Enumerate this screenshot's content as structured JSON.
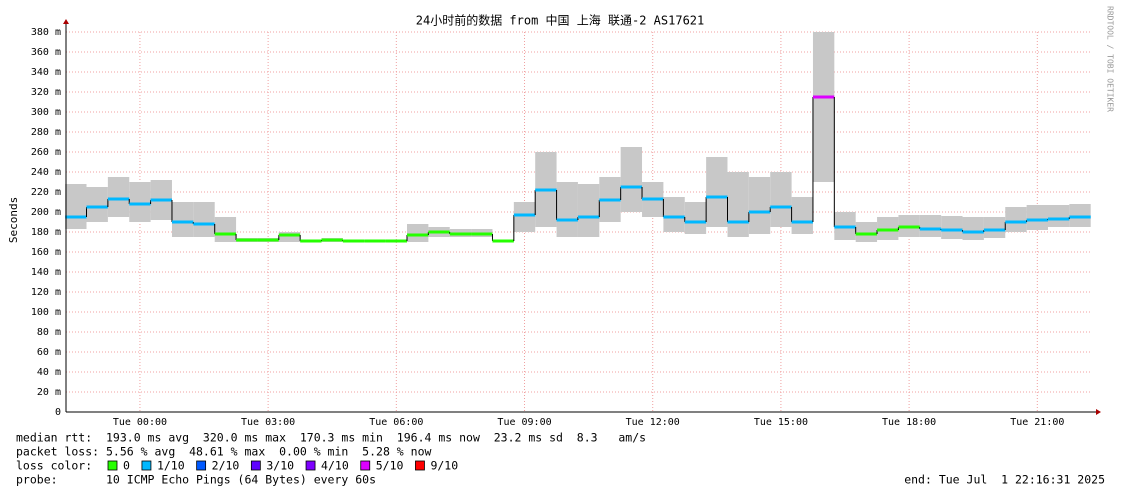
{
  "chart_data": {
    "type": "smoke",
    "title": "24小时前的数据 from 中国 上海 联通-2 AS17621",
    "y_label": "Seconds",
    "watermark": "RRDTOOL / TOBI OETIKER",
    "x": [
      -1.5,
      -1.0,
      -0.5,
      0,
      0.5,
      1.0,
      1.5,
      2.0,
      2.5,
      3.0,
      3.5,
      4.0,
      4.5,
      5.0,
      5.5,
      6.0,
      6.5,
      7.0,
      7.5,
      8.0,
      8.5,
      9.0,
      9.5,
      10.0,
      10.5,
      11.0,
      11.5,
      12.0,
      12.5,
      13.0,
      13.5,
      14.0,
      14.5,
      15.0,
      15.5,
      16.0,
      16.5,
      17.0,
      17.5,
      18.0,
      18.5,
      19.0,
      19.5,
      20.0,
      20.5,
      21.0,
      21.5,
      22.0
    ],
    "values": [
      195,
      205,
      213,
      208,
      212,
      190,
      188,
      178,
      172,
      172,
      177,
      171,
      172,
      171,
      171,
      171,
      177,
      180,
      178,
      178,
      171,
      197,
      222,
      192,
      195,
      212,
      225,
      213,
      195,
      190,
      215,
      190,
      200,
      205,
      190,
      315,
      185,
      178,
      182,
      185,
      183,
      182,
      180,
      182,
      190,
      192,
      193,
      195
    ],
    "high": [
      228,
      225,
      235,
      230,
      232,
      210,
      210,
      195,
      174,
      174,
      180,
      172,
      174,
      172,
      172,
      172,
      188,
      185,
      183,
      183,
      172,
      210,
      260,
      230,
      228,
      235,
      265,
      230,
      215,
      210,
      255,
      240,
      235,
      240,
      215,
      380,
      200,
      190,
      195,
      197,
      197,
      196,
      195,
      195,
      205,
      207,
      207,
      208
    ],
    "low": [
      183,
      190,
      195,
      190,
      192,
      175,
      175,
      170,
      170,
      170,
      170,
      170,
      170,
      170,
      170,
      170,
      170,
      175,
      175,
      175,
      170,
      180,
      185,
      175,
      175,
      190,
      200,
      195,
      180,
      178,
      185,
      175,
      178,
      185,
      178,
      230,
      172,
      170,
      172,
      175,
      175,
      173,
      172,
      174,
      180,
      182,
      185,
      185
    ],
    "loss": [
      1,
      1,
      1,
      1,
      1,
      1,
      1,
      0,
      0,
      0,
      0,
      0,
      0,
      0,
      0,
      0,
      0,
      0,
      0,
      0,
      0,
      1,
      1,
      1,
      1,
      1,
      1,
      1,
      1,
      1,
      1,
      1,
      1,
      1,
      1,
      5,
      1,
      0,
      0,
      0,
      1,
      1,
      1,
      1,
      1,
      1,
      1,
      1
    ],
    "smoke_color": "#c8c8c8",
    "xlim": [
      -1.73,
      22.28
    ],
    "xticks": [
      {
        "value": 0,
        "label": "Tue 00:00"
      },
      {
        "value": 3,
        "label": "Tue 03:00"
      },
      {
        "value": 6,
        "label": "Tue 06:00"
      },
      {
        "value": 9,
        "label": "Tue 09:00"
      },
      {
        "value": 12,
        "label": "Tue 12:00"
      },
      {
        "value": 15,
        "label": "Tue 15:00"
      },
      {
        "value": 18,
        "label": "Tue 18:00"
      },
      {
        "value": 21,
        "label": "Tue 21:00"
      }
    ],
    "ylim": [
      0,
      380
    ],
    "yticks": [
      0,
      {
        "value": 20,
        "label": "20 m"
      },
      {
        "value": 40,
        "label": "40 m"
      },
      {
        "value": 60,
        "label": "60 m"
      },
      {
        "value": 80,
        "label": "80 m"
      },
      {
        "value": 100,
        "label": "100 m"
      },
      {
        "value": 120,
        "label": "120 m"
      },
      {
        "value": 140,
        "label": "140 m"
      },
      {
        "value": 160,
        "label": "160 m"
      },
      {
        "value": 180,
        "label": "180 m"
      },
      {
        "value": 200,
        "label": "200 m"
      },
      {
        "value": 220,
        "label": "220 m"
      },
      {
        "value": 240,
        "label": "240 m"
      },
      {
        "value": 260,
        "label": "260 m"
      },
      {
        "value": 280,
        "label": "280 m"
      },
      {
        "value": 300,
        "label": "300 m"
      },
      {
        "value": 320,
        "label": "320 m"
      },
      {
        "value": 340,
        "label": "340 m"
      },
      {
        "value": 360,
        "label": "360 m"
      },
      {
        "value": 380,
        "label": "380 m"
      }
    ],
    "grid": true,
    "stats": {
      "median": "median rtt:  193.0 ms avg  320.0 ms max  170.3 ms min  196.4 ms now  23.2 ms sd  8.3   am/s",
      "packet_loss": "packet loss: 5.56 % avg  48.61 % max  0.00 % min  5.28 % now",
      "loss_label": "loss color:",
      "probe": "probe:       10 ICMP Echo Pings (64 Bytes) every 60s",
      "end": "end: Tue Jul  1 22:16:31 2025"
    },
    "loss_colors": [
      {
        "label": "0",
        "color": "#26ff00"
      },
      {
        "label": "1/10",
        "color": "#00b8ff"
      },
      {
        "label": "2/10",
        "color": "#0059ff"
      },
      {
        "label": "3/10",
        "color": "#5e00ff"
      },
      {
        "label": "4/10",
        "color": "#7e00ff"
      },
      {
        "label": "5/10",
        "color": "#dd00ff"
      },
      {
        "label": "9/10",
        "color": "#ff0000"
      }
    ]
  }
}
